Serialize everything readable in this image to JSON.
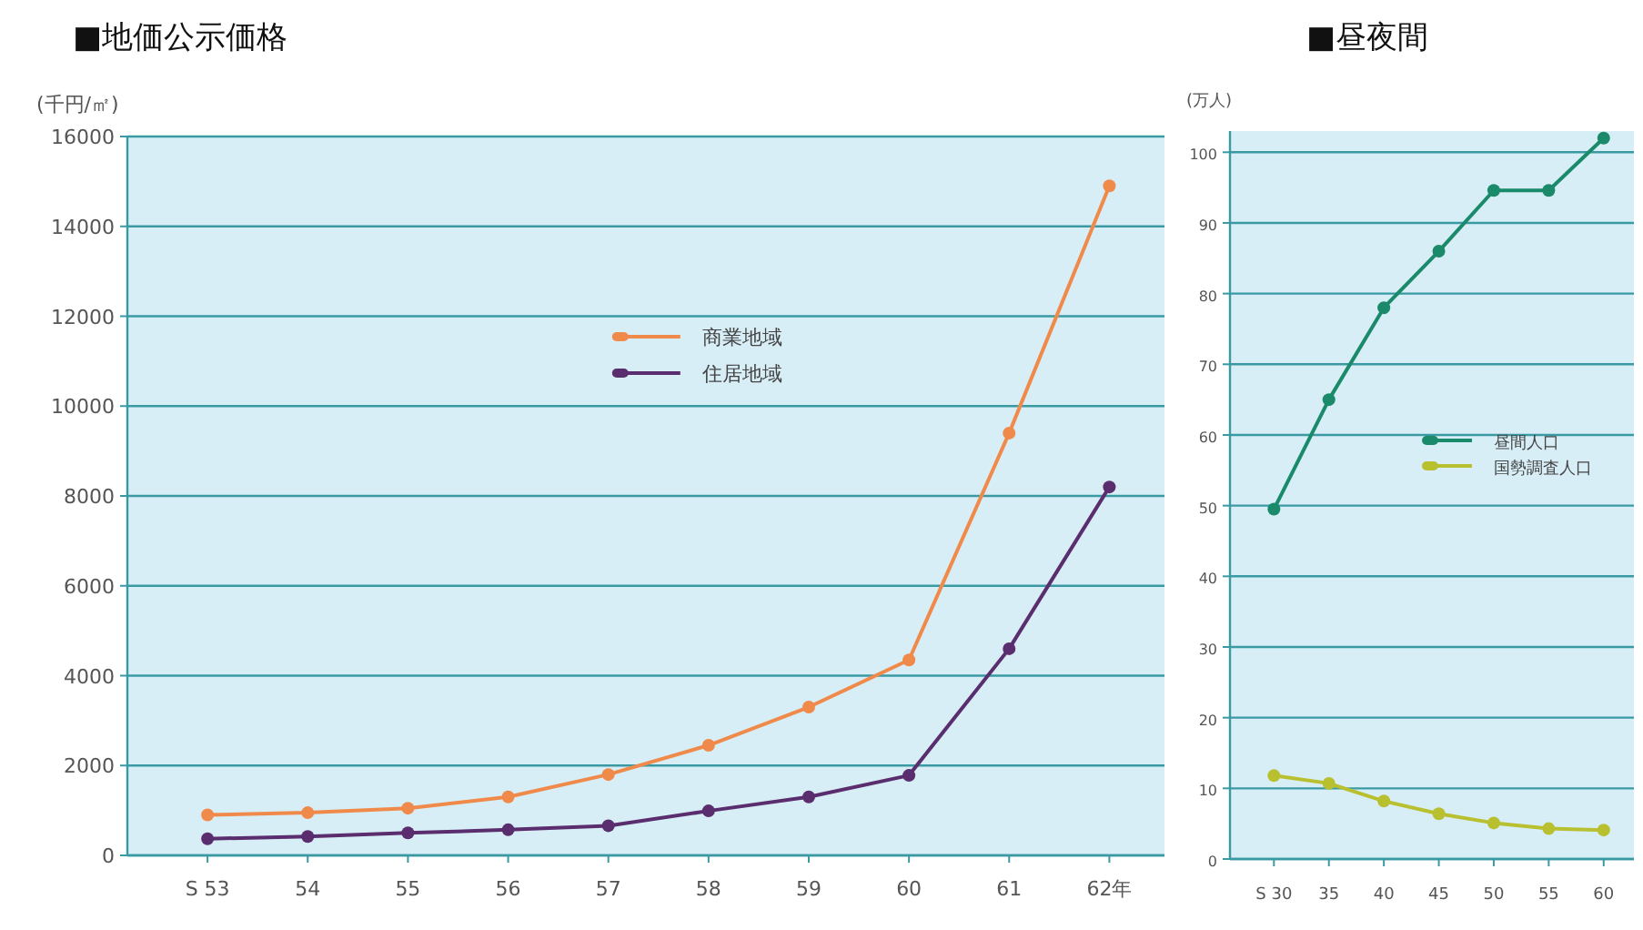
{
  "chart_data": [
    {
      "type": "line",
      "title": "■地価公示価格",
      "ylabel": "(千円/㎡)",
      "categories": [
        "S 53",
        "54",
        "55",
        "56",
        "57",
        "58",
        "59",
        "60",
        "61",
        "62年"
      ],
      "series": [
        {
          "name": "商業地域",
          "color": "#f08a4b",
          "values": [
            900,
            950,
            1050,
            1300,
            1800,
            2450,
            3300,
            4350,
            9400,
            14900
          ]
        },
        {
          "name": "住居地域",
          "color": "#5a2d6e",
          "values": [
            370,
            420,
            500,
            570,
            660,
            990,
            1300,
            1780,
            4600,
            8200
          ]
        }
      ],
      "ylim": [
        0,
        16000
      ],
      "yticks": [
        0,
        2000,
        4000,
        6000,
        8000,
        10000,
        12000,
        14000,
        16000
      ],
      "grid": "y",
      "legend": "top",
      "marker": "circle",
      "line_style": "solid"
    },
    {
      "type": "line",
      "title": "■昼夜間",
      "ylabel": "(万人)",
      "categories": [
        "S 30",
        "35",
        "40",
        "45",
        "50",
        "55",
        "60"
      ],
      "series": [
        {
          "name": "昼間人口",
          "color": "#1a8a6a",
          "values": [
            49.5,
            65,
            78,
            86,
            94.6,
            94.6,
            102
          ]
        },
        {
          "name": "国勢調査人口",
          "color": "#b8c030",
          "values": [
            11.8,
            10.7,
            8.2,
            6.4,
            5.1,
            4.3,
            4.1
          ]
        }
      ],
      "ylim": [
        0,
        103
      ],
      "yticks": [
        0,
        10,
        20,
        30,
        40,
        50,
        60,
        70,
        80,
        90,
        100
      ],
      "grid": "y",
      "legend": "right",
      "marker": "circle",
      "line_style": "solid"
    }
  ]
}
